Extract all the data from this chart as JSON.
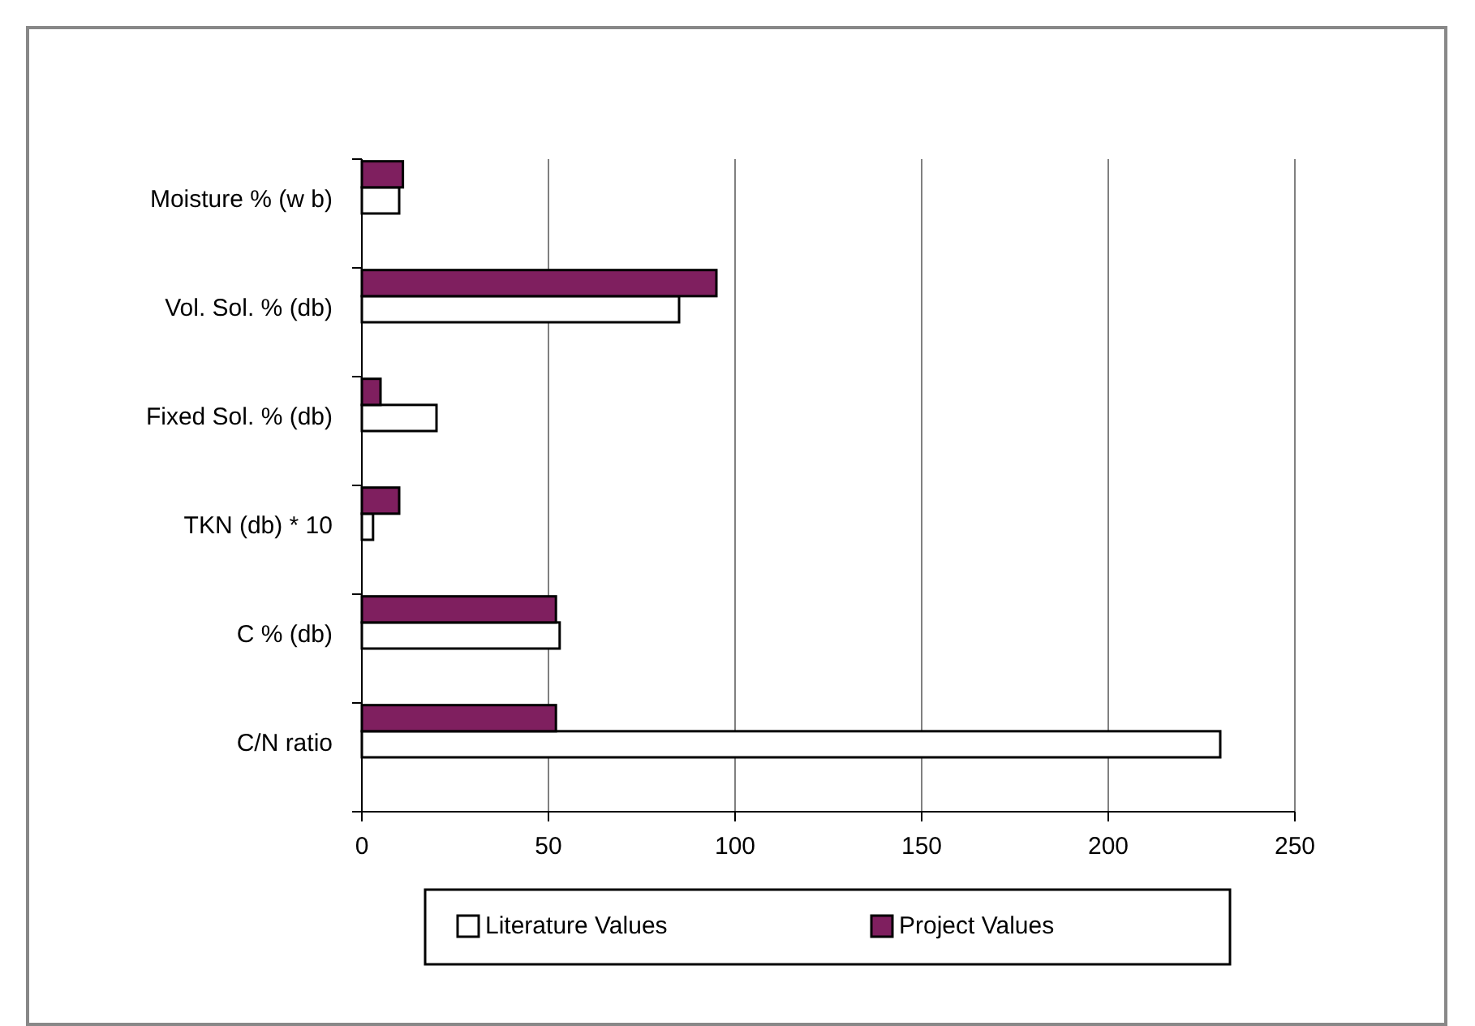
{
  "chart_data": {
    "type": "bar",
    "orientation": "horizontal",
    "categories": [
      "Moisture % (w b)",
      "Vol. Sol. % (db)",
      "Fixed Sol. % (db)",
      "TKN (db) * 10",
      "C % (db)",
      "C/N ratio"
    ],
    "series": [
      {
        "name": "Literature Values",
        "color": "#ffffff",
        "values": [
          10,
          85,
          20,
          3,
          53,
          230
        ]
      },
      {
        "name": "Project Values",
        "color": "#7f1f5f",
        "values": [
          11,
          95,
          5,
          10,
          52,
          52
        ]
      }
    ],
    "xlim": [
      0,
      250
    ],
    "xticks": [
      0,
      50,
      100,
      150,
      200,
      250
    ],
    "grid": "x",
    "legend": "bottom"
  }
}
